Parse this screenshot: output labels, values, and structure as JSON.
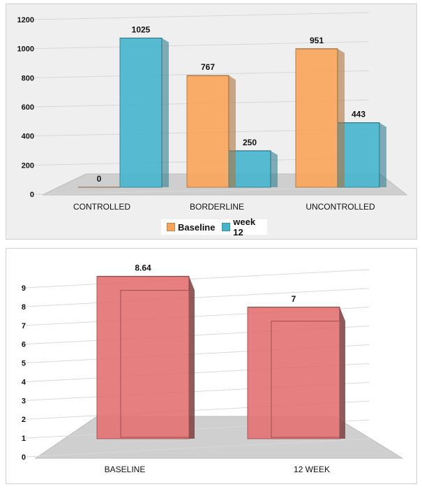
{
  "colors": {
    "baseline": "#F8A458",
    "week12": "#45B5CD",
    "red_bar": "#E37171",
    "floor": "#cfcfcf",
    "text": "#111111"
  },
  "chart_data": [
    {
      "type": "bar",
      "categories": [
        "CONTROLLED",
        "BORDERLINE",
        "UNCONTROLLED"
      ],
      "series": [
        {
          "name": "Baseline",
          "values": [
            0,
            767,
            951
          ]
        },
        {
          "name": "week 12",
          "values": [
            1025,
            250,
            443
          ]
        }
      ],
      "data_labels": [
        [
          "0",
          "767",
          "951"
        ],
        [
          "1025",
          "250",
          "443"
        ]
      ],
      "yticks": [
        "0",
        "200",
        "400",
        "600",
        "800",
        "1000",
        "1200"
      ],
      "ylim": [
        0,
        1200
      ],
      "legend": "bottom",
      "grid": true
    },
    {
      "type": "bar",
      "categories": [
        "BASELINE",
        "12 WEEK"
      ],
      "series": [
        {
          "values": [
            8.64,
            7
          ]
        }
      ],
      "data_labels": [
        "8.64",
        "7"
      ],
      "yticks": [
        "0",
        "1",
        "2",
        "3",
        "4",
        "5",
        "6",
        "7",
        "8",
        "9"
      ],
      "ylim": [
        0,
        9
      ],
      "grid": true
    }
  ]
}
